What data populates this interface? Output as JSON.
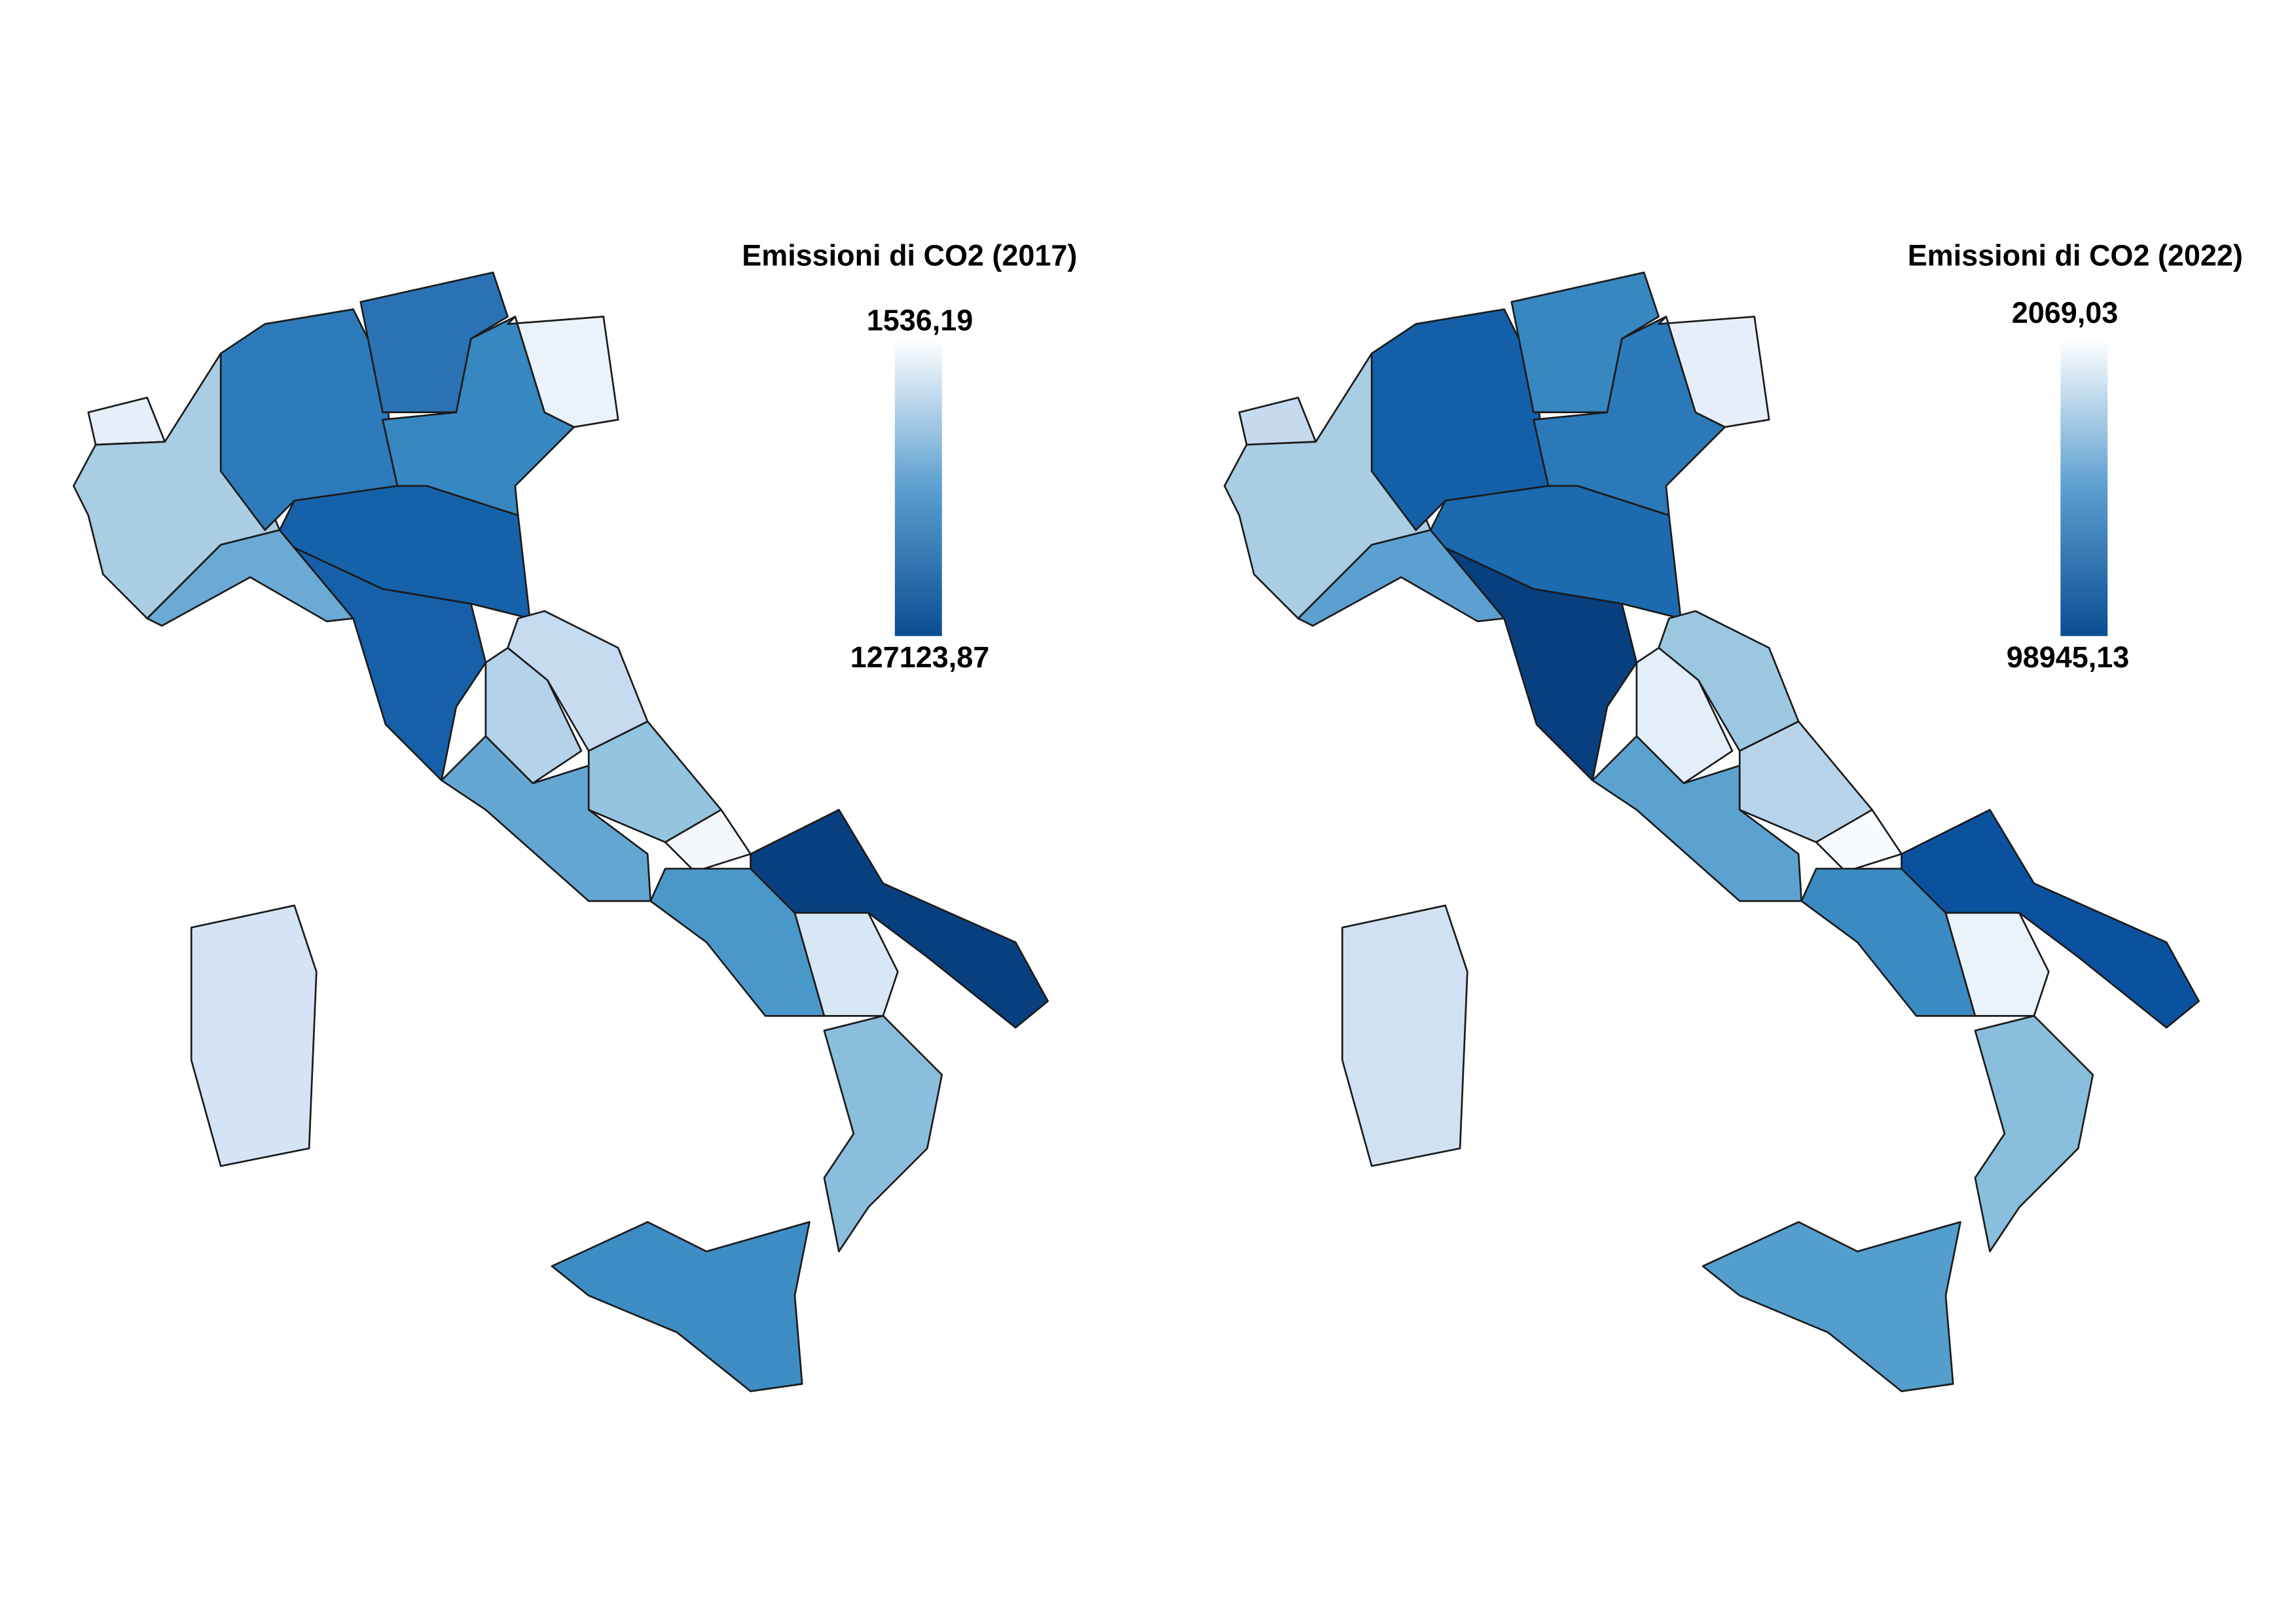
{
  "maps": [
    {
      "title": "Emissioni di CO2 (2017)",
      "legend": {
        "top_label": "1536,19",
        "bottom_label": "127123,87"
      }
    },
    {
      "title": "Emissioni di CO2 (2022)",
      "legend": {
        "top_label": "2069,03",
        "bottom_label": "98945,13"
      }
    }
  ]
}
